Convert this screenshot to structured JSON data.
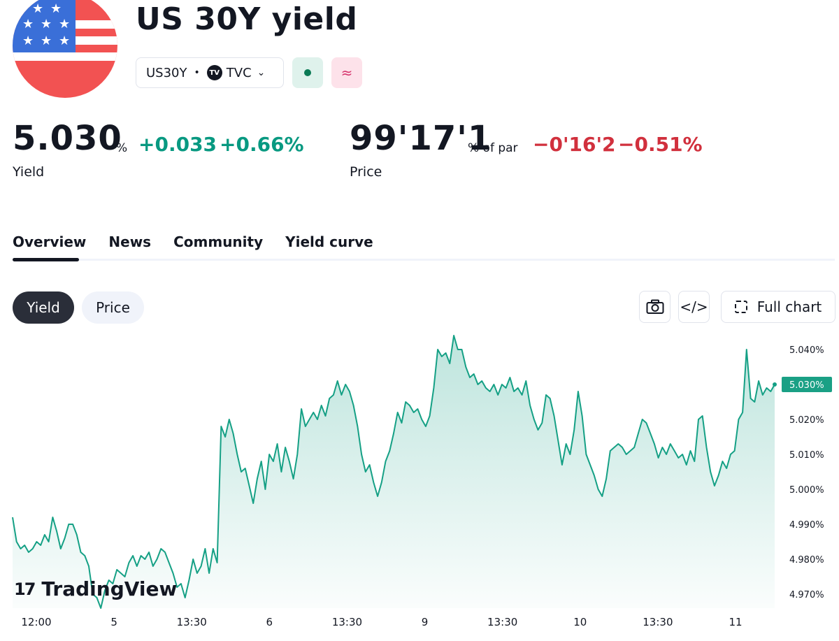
{
  "header": {
    "title": "US 30Y yield",
    "symbol": "US30Y",
    "separator": "•",
    "exchange": "TVC",
    "exchange_logo_text": "TV",
    "delay_icon_glyph": "≈",
    "flag_icon": "us-flag-icon"
  },
  "quote": {
    "yield_value": "5.030",
    "yield_unit": "%",
    "yield_change": "+0.033",
    "yield_change_pct": "+0.66%",
    "yield_label": "Yield",
    "price_value": "99'17'1",
    "price_unit": "% of par",
    "price_change": "−0'16'2",
    "price_change_pct": "−0.51%",
    "price_label": "Price"
  },
  "tabs": [
    {
      "label": "Overview",
      "active": true
    },
    {
      "label": "News",
      "active": false
    },
    {
      "label": "Community",
      "active": false
    },
    {
      "label": "Yield curve",
      "active": false
    }
  ],
  "chart_controls": {
    "yield_btn": "Yield",
    "price_btn": "Price",
    "embed_glyph": "</>",
    "full_chart": "Full chart"
  },
  "branding": {
    "logo_mark": "17",
    "logo_text": "TradingView"
  },
  "colors": {
    "up": "#089981",
    "down": "#d1303d",
    "line": "#15a085",
    "badge": "#1aa085"
  },
  "chart_data": {
    "type": "area",
    "title": "",
    "xlabel": "",
    "ylabel": "",
    "ylim": [
      4.966,
      5.046
    ],
    "y_ticks": [
      "5.040%",
      "5.030%",
      "5.020%",
      "5.010%",
      "5.000%",
      "4.990%",
      "4.980%",
      "4.970%"
    ],
    "y_tick_values": [
      5.04,
      5.03,
      5.02,
      5.01,
      5.0,
      4.99,
      4.98,
      4.97
    ],
    "x_ticks": [
      "12:00",
      "5",
      "13:30",
      "6",
      "13:30",
      "9",
      "13:30",
      "10",
      "13:30",
      "11"
    ],
    "last_value_label": "5.030%",
    "last_value": 5.03,
    "series": [
      {
        "values": [
          4.992,
          4.985,
          4.983,
          4.984,
          4.982,
          4.983,
          4.985,
          4.984,
          4.987,
          4.985,
          4.992,
          4.988,
          4.983,
          4.986,
          4.99,
          4.99,
          4.987,
          4.982,
          4.981,
          4.978,
          4.97,
          4.969,
          4.966,
          4.971,
          4.974,
          4.973,
          4.977,
          4.976,
          4.975,
          4.979,
          4.981,
          4.978,
          4.981,
          4.98,
          4.982,
          4.978,
          4.98,
          4.983,
          4.982,
          4.979,
          4.976,
          4.972,
          4.973,
          4.969,
          4.974,
          4.98,
          4.976,
          4.978,
          4.983,
          4.976,
          4.983,
          4.979,
          5.018,
          5.015,
          5.02,
          5.016,
          5.01,
          5.005,
          5.006,
          5.001,
          4.996,
          5.003,
          5.008,
          5.0,
          5.01,
          5.008,
          5.013,
          5.005,
          5.012,
          5.008,
          5.003,
          5.01,
          5.023,
          5.018,
          5.02,
          5.022,
          5.02,
          5.024,
          5.021,
          5.026,
          5.027,
          5.031,
          5.027,
          5.03,
          5.028,
          5.024,
          5.018,
          5.01,
          5.005,
          5.007,
          5.002,
          4.998,
          5.002,
          5.008,
          5.011,
          5.016,
          5.022,
          5.019,
          5.025,
          5.024,
          5.022,
          5.023,
          5.02,
          5.018,
          5.021,
          5.029,
          5.04,
          5.038,
          5.039,
          5.036,
          5.044,
          5.04,
          5.04,
          5.035,
          5.032,
          5.033,
          5.03,
          5.031,
          5.029,
          5.028,
          5.03,
          5.027,
          5.03,
          5.029,
          5.032,
          5.028,
          5.029,
          5.027,
          5.031,
          5.024,
          5.02,
          5.017,
          5.019,
          5.027,
          5.026,
          5.021,
          5.014,
          5.007,
          5.013,
          5.01,
          5.017,
          5.028,
          5.021,
          5.01,
          5.007,
          5.004,
          5.0,
          4.998,
          5.003,
          5.011,
          5.012,
          5.013,
          5.012,
          5.01,
          5.011,
          5.012,
          5.016,
          5.02,
          5.019,
          5.016,
          5.013,
          5.009,
          5.012,
          5.01,
          5.013,
          5.011,
          5.009,
          5.01,
          5.007,
          5.011,
          5.008,
          5.02,
          5.021,
          5.012,
          5.005,
          5.001,
          5.004,
          5.008,
          5.006,
          5.01,
          5.011,
          5.02,
          5.022,
          5.04,
          5.026,
          5.025,
          5.031,
          5.027,
          5.029,
          5.028,
          5.03
        ]
      }
    ]
  }
}
